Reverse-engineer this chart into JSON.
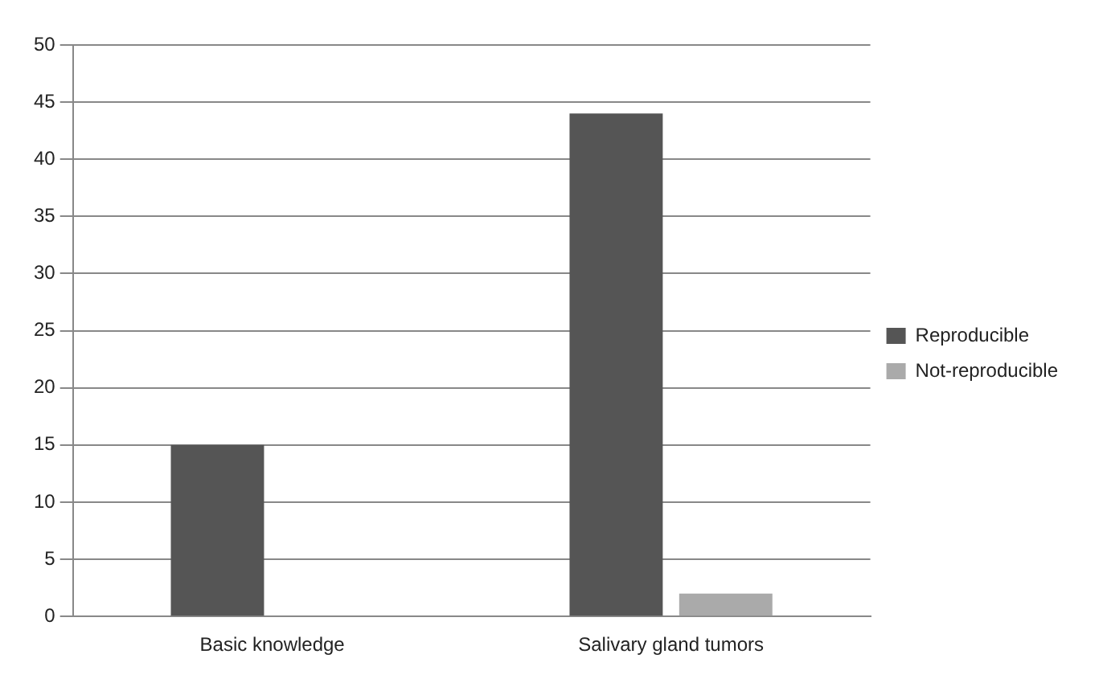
{
  "chart_data": {
    "type": "bar",
    "categories": [
      "Basic knowledge",
      "Salivary gland tumors"
    ],
    "series": [
      {
        "name": "Reproducible",
        "color": "#555555",
        "values": [
          15,
          44
        ]
      },
      {
        "name": "Not-reproducible",
        "color": "#aaaaaa",
        "values": [
          0,
          2
        ]
      }
    ],
    "ylim": [
      0,
      50
    ],
    "yticks": [
      0,
      5,
      10,
      15,
      20,
      25,
      30,
      35,
      40,
      45,
      50
    ],
    "grid": "y",
    "legend": "right"
  }
}
